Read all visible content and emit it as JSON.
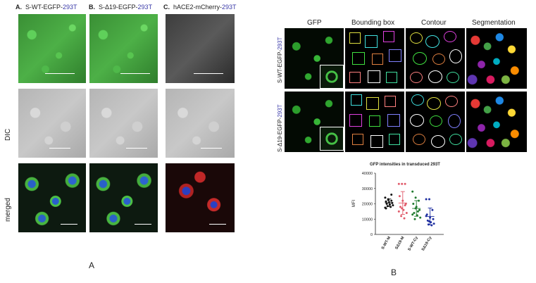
{
  "panelA": {
    "col1_prefix": "A.",
    "col1_label": "S-WT-EGFP-",
    "col1_suffix": "293T",
    "col2_prefix": "B.",
    "col2_label": "S-Δ19-EGFP-",
    "col2_suffix": "293T",
    "col3_prefix": "C.",
    "col3_label": "hACE2-mCherry-",
    "col3_suffix": "293T",
    "row2_label": "DIC",
    "row3_label": "merged",
    "figure_letter": "A"
  },
  "panelB": {
    "columns": [
      "GFP",
      "Bounding box",
      "Contour",
      "Segmentation"
    ],
    "row1_label_main": "S-WT-EGFP-",
    "row1_label_suffix": "293T",
    "row2_label_main": "S-Δ19-EGFP-",
    "row2_label_suffix": "293T",
    "figure_letter": "B"
  },
  "chart_data": {
    "type": "scatter",
    "title": "GFP intensities in transduced 293T",
    "ylabel": "MFI",
    "ylim": [
      0,
      40000
    ],
    "yticks": [
      "0",
      "10000",
      "20000",
      "30000",
      "40000"
    ],
    "categories": [
      "S-WT-M",
      "SΔ19-M",
      "S-WT-Cy",
      "SΔ19-Cy"
    ],
    "colors": [
      "#111111",
      "#e05a6a",
      "#1f7a2e",
      "#1f2fa0"
    ],
    "series": [
      {
        "values": [
          24000,
          23000,
          22000,
          21500,
          21000,
          20500,
          20000,
          19500,
          19000,
          18500,
          18000,
          17500,
          22500,
          26000,
          17000
        ]
      },
      {
        "values": [
          33000,
          33000,
          33000,
          25000,
          22000,
          20000,
          18000,
          16000,
          14000,
          12000,
          10500,
          15000,
          17000,
          19000
        ]
      },
      {
        "values": [
          28000,
          24000,
          22000,
          20000,
          18000,
          16000,
          14000,
          12500,
          11000,
          10000,
          15000,
          13000,
          17000
        ]
      },
      {
        "values": [
          23000,
          23000,
          16000,
          13000,
          11000,
          10000,
          9000,
          8000,
          7000,
          6500,
          6000,
          12000,
          8500
        ]
      }
    ]
  }
}
